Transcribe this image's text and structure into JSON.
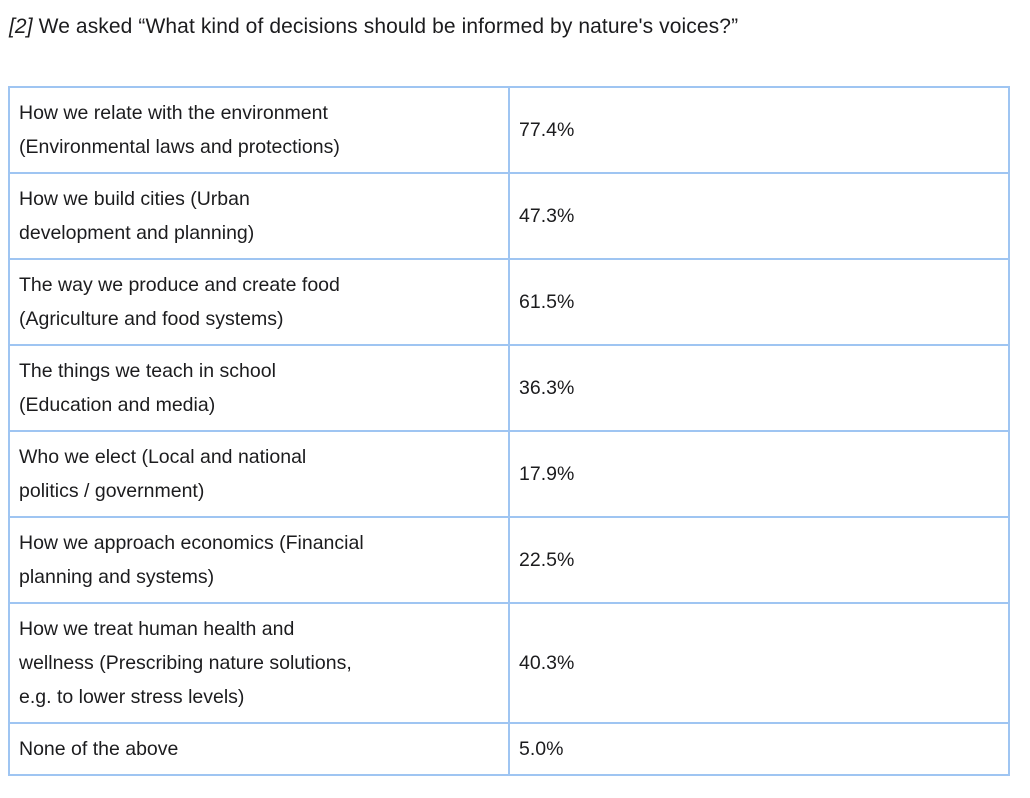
{
  "heading": {
    "number": "[2]",
    "text": "We asked “What kind of decisions should be informed by nature's voices?”"
  },
  "table": {
    "border_color": "#9fc5f2",
    "columns": [
      "option",
      "percentage"
    ],
    "rows": [
      {
        "label": "How we relate with the environment\n(Environmental laws and protections)",
        "value": "77.4%"
      },
      {
        "label": "How we build cities (Urban\ndevelopment and planning)",
        "value": "47.3%"
      },
      {
        "label": "The way we produce and create food\n(Agriculture and food systems)",
        "value": "61.5%"
      },
      {
        "label": "The things we teach in school\n(Education and media)",
        "value": "36.3%"
      },
      {
        "label": "Who we elect (Local and national\npolitics / government)",
        "value": "17.9%"
      },
      {
        "label": "How we approach economics (Financial\nplanning and systems)",
        "value": "22.5%"
      },
      {
        "label": "How we treat human health and\nwellness (Prescribing nature solutions,\ne.g. to lower stress levels)",
        "value": "40.3%"
      },
      {
        "label": "None of the above",
        "value": "5.0%"
      }
    ]
  }
}
